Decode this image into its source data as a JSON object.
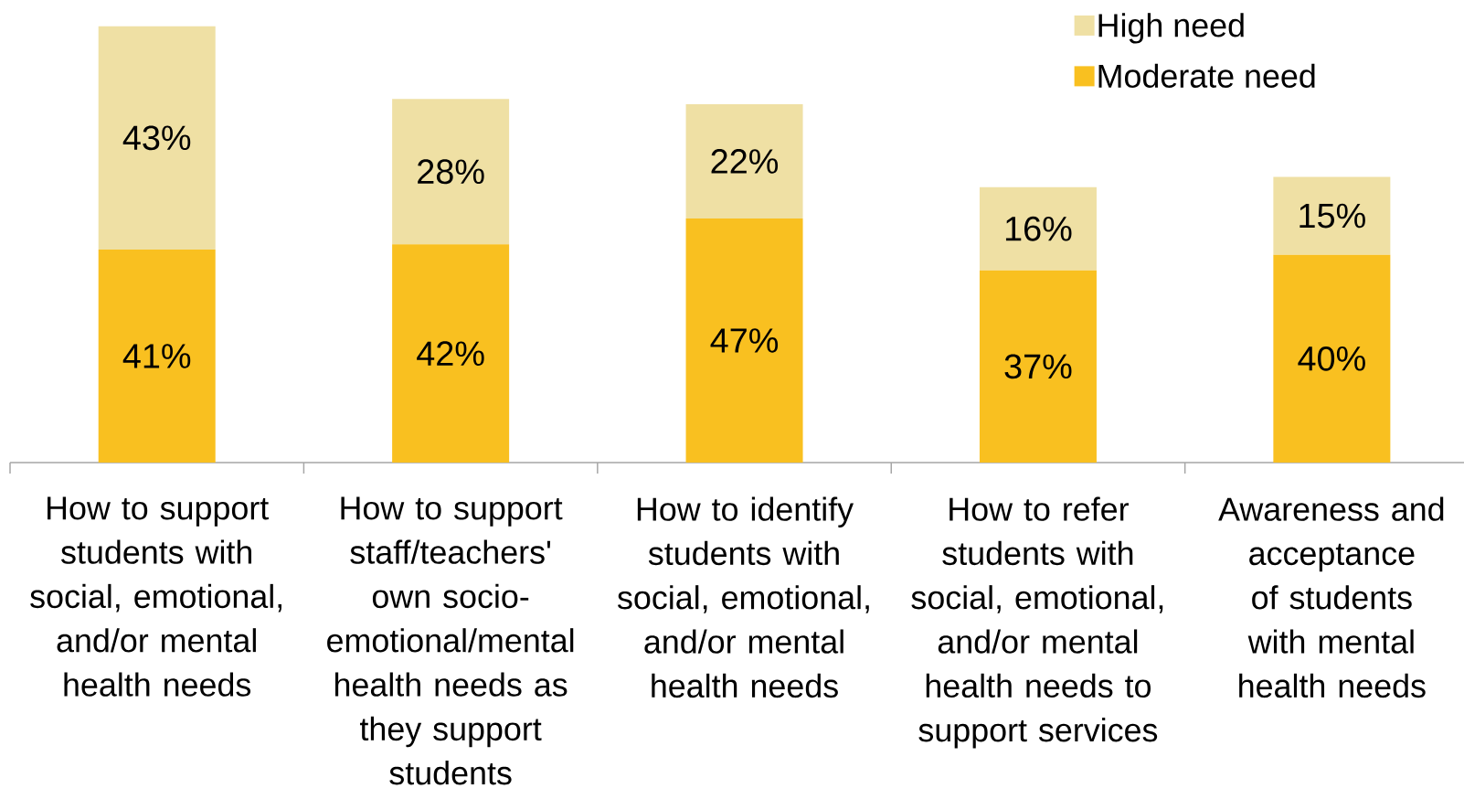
{
  "chart_data": {
    "type": "bar",
    "stacked": true,
    "legend": "top right",
    "categories": [
      "How to support students with social, emotional, and/or mental health needs",
      "How to support staff/teachers' own socio-emotional/mental health needs as they support students",
      "How to identify students with social, emotional, and/or mental health needs",
      "How to refer students with social, emotional, and/or mental health needs to support services",
      "Awareness and acceptance of students with mental health needs"
    ],
    "series": [
      {
        "name": "Moderate need",
        "color": "#f9c020",
        "values": [
          41,
          42,
          47,
          37,
          40
        ],
        "value_labels": [
          "41%",
          "42%",
          "47%",
          "37%",
          "40%"
        ]
      },
      {
        "name": "High need",
        "color": "#efe0a4",
        "values": [
          43,
          28,
          22,
          16,
          15
        ],
        "value_labels": [
          "43%",
          "28%",
          "22%",
          "16%",
          "15%"
        ]
      }
    ]
  }
}
